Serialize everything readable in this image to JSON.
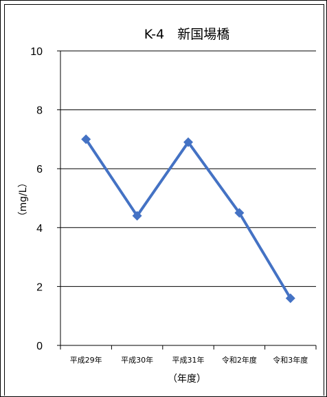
{
  "chart_data": {
    "type": "line",
    "title": "K-4　新国場橋",
    "xlabel": "（年度）",
    "ylabel": "（mg/L）",
    "categories": [
      "平成29年",
      "平成30年",
      "平成31年",
      "令和2年度",
      "令和3年度"
    ],
    "values": [
      7.0,
      4.4,
      6.9,
      4.5,
      1.6
    ],
    "ylim": [
      0,
      10
    ],
    "yticks": [
      0,
      2,
      4,
      6,
      8,
      10
    ],
    "grid": true,
    "legend": "none",
    "series_color": "#4472C4"
  }
}
